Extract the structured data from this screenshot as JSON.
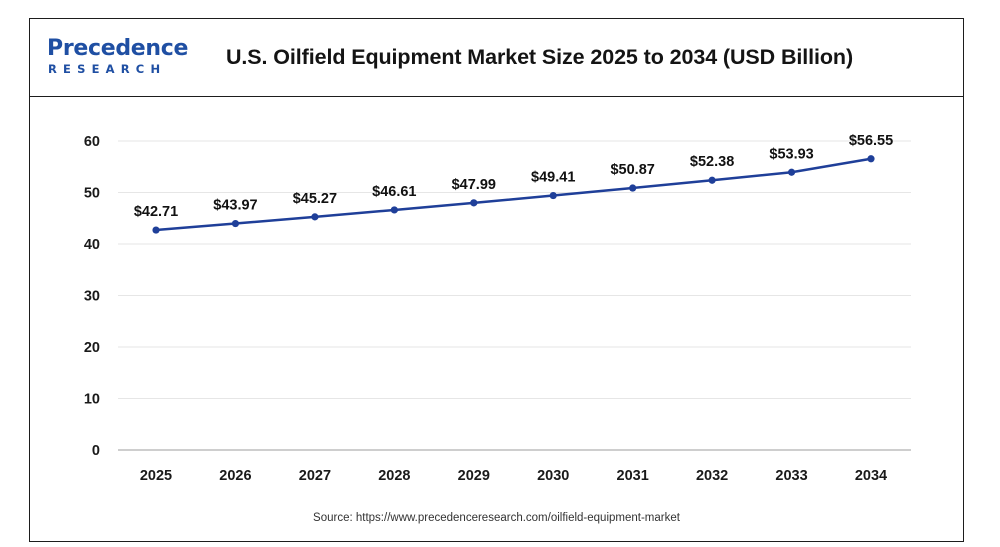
{
  "brand": {
    "name": "Precedence",
    "sub": "RESEARCH",
    "color": "#1f4fa3"
  },
  "header": {
    "title": "U.S. Oilfield Equipment Market Size 2025 to 2034 (USD Billion)"
  },
  "footer": {
    "source": "Source: https://www.precedenceresearch.com/oilfield-equipment-market"
  },
  "chart_data": {
    "type": "line",
    "title": "U.S. Oilfield Equipment Market Size 2025 to 2034 (USD Billion)",
    "xlabel": "",
    "ylabel": "",
    "categories": [
      "2025",
      "2026",
      "2027",
      "2028",
      "2029",
      "2030",
      "2031",
      "2032",
      "2033",
      "2034"
    ],
    "series": [
      {
        "values": [
          42.71,
          43.97,
          45.27,
          46.61,
          47.99,
          49.41,
          50.87,
          52.38,
          53.93,
          56.55
        ],
        "labels": [
          "$42.71",
          "$43.97",
          "$45.27",
          "$46.61",
          "$47.99",
          "$49.41",
          "$50.87",
          "$52.38",
          "$53.93",
          "$56.55"
        ],
        "color": "#1f3f99"
      }
    ],
    "ylim": [
      0,
      60
    ],
    "yticks": [
      0,
      10,
      20,
      30,
      40,
      50,
      60
    ],
    "grid": true,
    "legend": "none"
  }
}
